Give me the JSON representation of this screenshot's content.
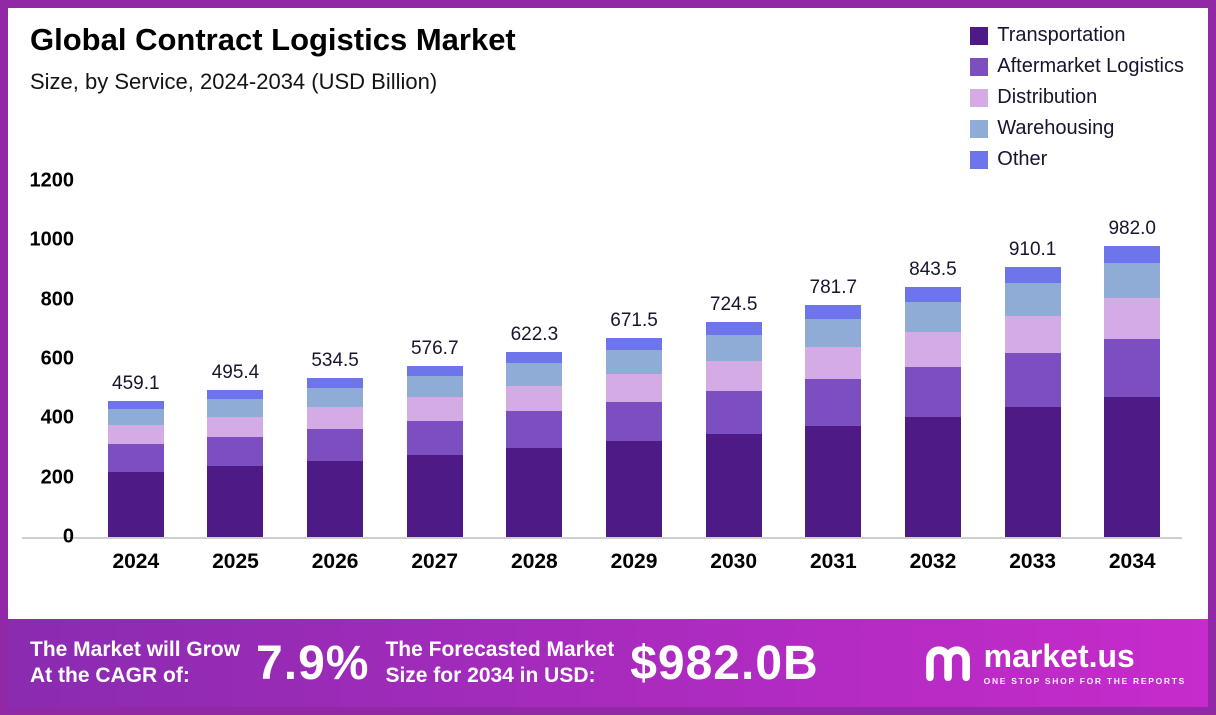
{
  "chart_data": {
    "type": "bar",
    "stacked": true,
    "title": "Global Contract Logistics Market",
    "subtitle": "Size, by Service, 2024-2034 (USD Billion)",
    "unit": "USD Billion",
    "categories": [
      "2024",
      "2025",
      "2026",
      "2027",
      "2028",
      "2029",
      "2030",
      "2031",
      "2032",
      "2033",
      "2034"
    ],
    "series": [
      {
        "name": "Transportation",
        "color": "#4E1B86",
        "values": [
          220.4,
          237.8,
          256.6,
          276.8,
          298.7,
          322.3,
          347.8,
          375.2,
          404.9,
          436.8,
          471.4
        ]
      },
      {
        "name": "Aftermarket Logistics",
        "color": "#7C4FC0",
        "values": [
          91.8,
          99.1,
          106.9,
          115.3,
          124.5,
          134.3,
          144.9,
          156.3,
          168.7,
          182.0,
          196.4
        ]
      },
      {
        "name": "Distribution",
        "color": "#D4ABE4",
        "values": [
          64.3,
          69.4,
          74.8,
          80.7,
          87.1,
          94.0,
          101.4,
          109.4,
          118.1,
          127.4,
          137.5
        ]
      },
      {
        "name": "Warehousing",
        "color": "#8FACD6",
        "values": [
          55.1,
          59.4,
          64.1,
          69.2,
          74.7,
          80.6,
          86.9,
          93.8,
          101.2,
          109.2,
          117.8
        ]
      },
      {
        "name": "Other",
        "color": "#6E74EA",
        "values": [
          27.5,
          29.7,
          32.1,
          34.7,
          37.3,
          40.3,
          43.5,
          47.0,
          50.6,
          54.7,
          58.9
        ]
      }
    ],
    "totals": [
      "459.1",
      "495.4",
      "534.5",
      "576.7",
      "622.3",
      "671.5",
      "724.5",
      "781.7",
      "843.5",
      "910.1",
      "982.0"
    ],
    "ylim": [
      0,
      1200
    ],
    "yticks": [
      0,
      200,
      400,
      600,
      800,
      1000,
      1200
    ],
    "grid": false,
    "legend_position": "top-right"
  },
  "banner": {
    "grow_line1": "The Market will Grow",
    "grow_line2": "At the CAGR of:",
    "cagr": "7.9%",
    "forecast_line1": "The Forecasted Market",
    "forecast_line2": "Size for 2034 in USD:",
    "forecast_value": "$982.0B",
    "brand": "market.us",
    "tagline": "ONE STOP SHOP FOR THE REPORTS"
  },
  "theme": {
    "border_color": "#9129A7",
    "banner_gradient_from": "#8A2BB0",
    "banner_gradient_to": "#C62BCB"
  }
}
